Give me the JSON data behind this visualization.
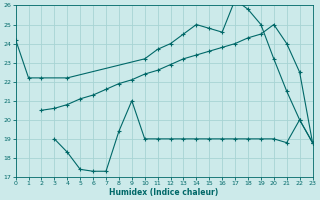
{
  "background_color": "#cceaea",
  "grid_color": "#a8d4d4",
  "line_color": "#006868",
  "xlim": [
    0,
    23
  ],
  "ylim": [
    17,
    26
  ],
  "yticks": [
    17,
    18,
    19,
    20,
    21,
    22,
    23,
    24,
    25,
    26
  ],
  "xticks": [
    0,
    1,
    2,
    3,
    4,
    5,
    6,
    7,
    8,
    9,
    10,
    11,
    12,
    13,
    14,
    15,
    16,
    17,
    18,
    19,
    20,
    21,
    22,
    23
  ],
  "xlabel": "Humidex (Indice chaleur)",
  "curve1_x": [
    0,
    1,
    2,
    4,
    10,
    11,
    12,
    13,
    14,
    15,
    16,
    17,
    18,
    19,
    20,
    21,
    22,
    23
  ],
  "curve1_y": [
    24.2,
    22.2,
    22.2,
    22.2,
    23.2,
    23.7,
    24.0,
    24.5,
    25.0,
    24.8,
    24.6,
    26.3,
    25.8,
    25.0,
    23.2,
    21.5,
    20.0,
    18.8
  ],
  "curve2_x": [
    2,
    3,
    4,
    5,
    6,
    7,
    8,
    9,
    10,
    11,
    12,
    13,
    14,
    15,
    16,
    17,
    18,
    19,
    20,
    21,
    22,
    23
  ],
  "curve2_y": [
    20.5,
    20.6,
    20.8,
    21.1,
    21.3,
    21.6,
    21.9,
    22.1,
    22.4,
    22.6,
    22.9,
    23.2,
    23.4,
    23.6,
    23.8,
    24.0,
    24.3,
    24.5,
    25.0,
    24.0,
    22.5,
    18.8
  ],
  "curve3_x": [
    3,
    4,
    5,
    6,
    7,
    8,
    9,
    10,
    11,
    12,
    13,
    14,
    15,
    16,
    17,
    18,
    19,
    20,
    21,
    22,
    23
  ],
  "curve3_y": [
    19.0,
    18.3,
    17.4,
    17.3,
    17.3,
    19.4,
    21.0,
    19.0,
    19.0,
    19.0,
    19.0,
    19.0,
    19.0,
    19.0,
    19.0,
    19.0,
    19.0,
    19.0,
    18.8,
    20.0,
    18.8
  ]
}
